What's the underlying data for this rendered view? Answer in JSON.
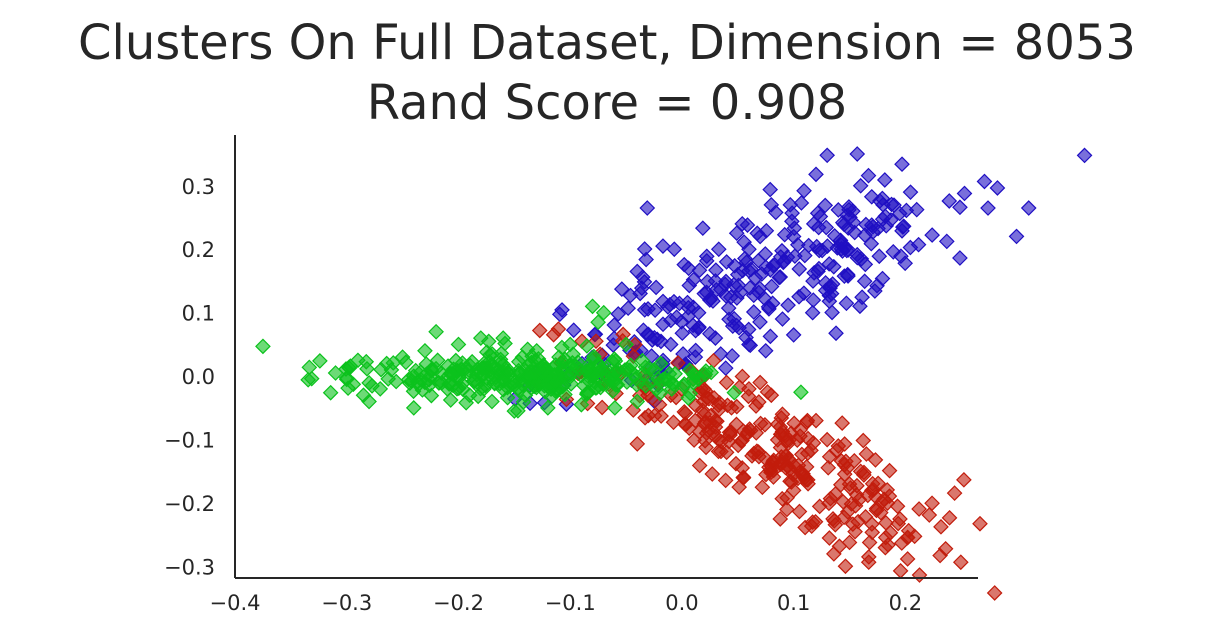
{
  "chart_data": {
    "type": "scatter",
    "title_lines": [
      "Clusters On Full Dataset, Dimension = 8053",
      "Rand Score = 0.908"
    ],
    "xlabel": "",
    "ylabel": "",
    "xlim": [
      -0.4,
      0.265
    ],
    "ylim": [
      -0.318,
      0.38
    ],
    "x_ticks": [
      -0.4,
      -0.3,
      -0.2,
      -0.1,
      0.0,
      0.1,
      0.2
    ],
    "x_tick_labels": [
      "−0.4",
      "−0.3",
      "−0.2",
      "−0.1",
      "0.0",
      "0.1",
      "0.2"
    ],
    "y_ticks": [
      0.3,
      0.2,
      0.1,
      0.0,
      -0.1,
      -0.2,
      -0.3
    ],
    "y_tick_labels": [
      "0.3",
      "0.2",
      "0.1",
      "0.0",
      "−0.1",
      "−0.2",
      "−0.3"
    ],
    "marker": "diamond",
    "grid": false,
    "series": [
      {
        "color": "#1f0fc3",
        "points": [
          [
            0.13,
            0.348
          ],
          [
            0.197,
            0.334
          ],
          [
            0.079,
            0.294
          ],
          [
            0.12,
            0.318
          ],
          [
            0.167,
            0.316
          ],
          [
            0.16,
            0.3
          ],
          [
            0.18,
            0.27
          ],
          [
            0.182,
            0.252
          ],
          [
            -0.031,
            0.265
          ],
          [
            0.054,
            0.24
          ],
          [
            0.08,
            0.27
          ],
          [
            0.084,
            0.258
          ],
          [
            0.097,
            0.27
          ],
          [
            0.14,
            0.262
          ],
          [
            0.153,
            0.26
          ],
          [
            0.144,
            0.242
          ],
          [
            0.118,
            0.24
          ],
          [
            0.142,
            0.214
          ],
          [
            0.149,
            0.199
          ],
          [
            0.033,
            0.2
          ],
          [
            0.006,
            0.17
          ],
          [
            -0.04,
            0.165
          ],
          [
            -0.046,
            0.127
          ],
          [
            -0.024,
            0.104
          ],
          [
            -0.057,
            0.098
          ],
          [
            -0.03,
            0.066
          ],
          [
            -0.022,
            0.058
          ],
          [
            -0.01,
            0.05
          ],
          [
            0.001,
            0.035
          ],
          [
            0.012,
            0.03
          ],
          [
            0.134,
            0.13
          ],
          [
            0.132,
            0.118
          ],
          [
            0.117,
            0.1
          ],
          [
            0.1,
            0.065
          ],
          [
            0.09,
            0.09
          ],
          [
            0.075,
            0.04
          ],
          [
            0.06,
            0.05
          ],
          [
            0.045,
            0.032
          ],
          [
            0.025,
            0.12
          ],
          [
            0.02,
            0.13
          ],
          [
            0.05,
            0.16
          ],
          [
            0.06,
            0.2
          ],
          [
            0.07,
            0.22
          ],
          [
            0.1,
            0.22
          ],
          [
            0.11,
            0.19
          ],
          [
            0.04,
            0.18
          ],
          [
            0.03,
            0.15
          ],
          [
            0.015,
            0.1
          ],
          [
            0.01,
            0.08
          ],
          [
            0.03,
            0.06
          ]
        ],
        "core": {
          "center": [
            0.065,
            0.14
          ],
          "axis": [
            0.75,
            0.66
          ],
          "length": 0.13,
          "width": 0.04,
          "count": 260
        }
      },
      {
        "color": "#c21c0c",
        "points": [
          [
            0.236,
            -0.272
          ],
          [
            0.202,
            -0.288
          ],
          [
            0.193,
            -0.205
          ],
          [
            0.184,
            -0.2
          ],
          [
            0.178,
            -0.215
          ],
          [
            0.17,
            -0.233
          ],
          [
            0.168,
            -0.262
          ],
          [
            0.155,
            -0.245
          ],
          [
            0.15,
            -0.262
          ],
          [
            0.141,
            -0.268
          ],
          [
            0.132,
            -0.255
          ],
          [
            0.136,
            -0.28
          ],
          [
            0.117,
            -0.23
          ],
          [
            0.088,
            -0.225
          ],
          [
            0.094,
            -0.21
          ],
          [
            0.072,
            -0.175
          ],
          [
            0.055,
            -0.16
          ],
          [
            0.04,
            -0.12
          ],
          [
            0.03,
            -0.095
          ],
          [
            -0.03,
            -0.062
          ],
          [
            -0.02,
            -0.045
          ],
          [
            -0.01,
            -0.03
          ],
          [
            0.0,
            -0.02
          ],
          [
            0.01,
            -0.005
          ],
          [
            0.02,
            0.0
          ],
          [
            0.04,
            -0.01
          ],
          [
            0.06,
            -0.02
          ],
          [
            0.08,
            -0.03
          ],
          [
            0.07,
            -0.01
          ],
          [
            0.09,
            -0.06
          ],
          [
            0.12,
            -0.07
          ],
          [
            0.13,
            -0.1
          ],
          [
            0.14,
            -0.11
          ],
          [
            0.16,
            -0.15
          ],
          [
            0.17,
            -0.18
          ],
          [
            0.15,
            -0.17
          ],
          [
            0.11,
            -0.16
          ],
          [
            0.1,
            -0.18
          ],
          [
            0.03,
            -0.07
          ],
          [
            0.02,
            -0.06
          ]
        ],
        "core": {
          "center": [
            0.075,
            -0.11
          ],
          "axis": [
            0.75,
            -0.66
          ],
          "length": 0.12,
          "width": 0.03,
          "count": 260
        }
      },
      {
        "color": "#0bc21c",
        "points": [
          [
            -0.375,
            0.047
          ],
          [
            -0.31,
            0.005
          ],
          [
            -0.3,
            -0.005
          ],
          [
            -0.29,
            0.025
          ],
          [
            -0.285,
            -0.03
          ],
          [
            -0.28,
            -0.04
          ],
          [
            -0.27,
            -0.02
          ],
          [
            -0.26,
            0.01
          ],
          [
            -0.25,
            0.03
          ],
          [
            -0.24,
            -0.05
          ],
          [
            -0.23,
            0.04
          ],
          [
            -0.22,
            0.07
          ],
          [
            -0.2,
            0.05
          ],
          [
            -0.18,
            0.06
          ],
          [
            -0.16,
            0.06
          ],
          [
            -0.15,
            -0.055
          ],
          [
            -0.13,
            0.04
          ],
          [
            -0.12,
            -0.05
          ],
          [
            -0.08,
            0.11
          ],
          [
            -0.07,
            0.1
          ],
          [
            -0.075,
            0.085
          ],
          [
            -0.05,
            0.05
          ],
          [
            -0.06,
            -0.05
          ],
          [
            -0.04,
            -0.04
          ],
          [
            -0.1,
            0.05
          ],
          [
            -0.11,
            0.03
          ],
          [
            -0.14,
            -0.03
          ],
          [
            -0.17,
            -0.04
          ],
          [
            -0.19,
            -0.03
          ],
          [
            -0.21,
            -0.02
          ],
          [
            -0.23,
            -0.01
          ],
          [
            -0.025,
            0.01
          ],
          [
            -0.015,
            -0.005
          ],
          [
            -0.09,
            -0.045
          ],
          [
            -0.2,
            0.0
          ],
          [
            -0.24,
            0.0
          ]
        ],
        "core": {
          "center": [
            -0.13,
            0.0
          ],
          "axis": [
            1,
            0
          ],
          "length": 0.075,
          "width": 0.018,
          "count": 300
        }
      }
    ]
  }
}
